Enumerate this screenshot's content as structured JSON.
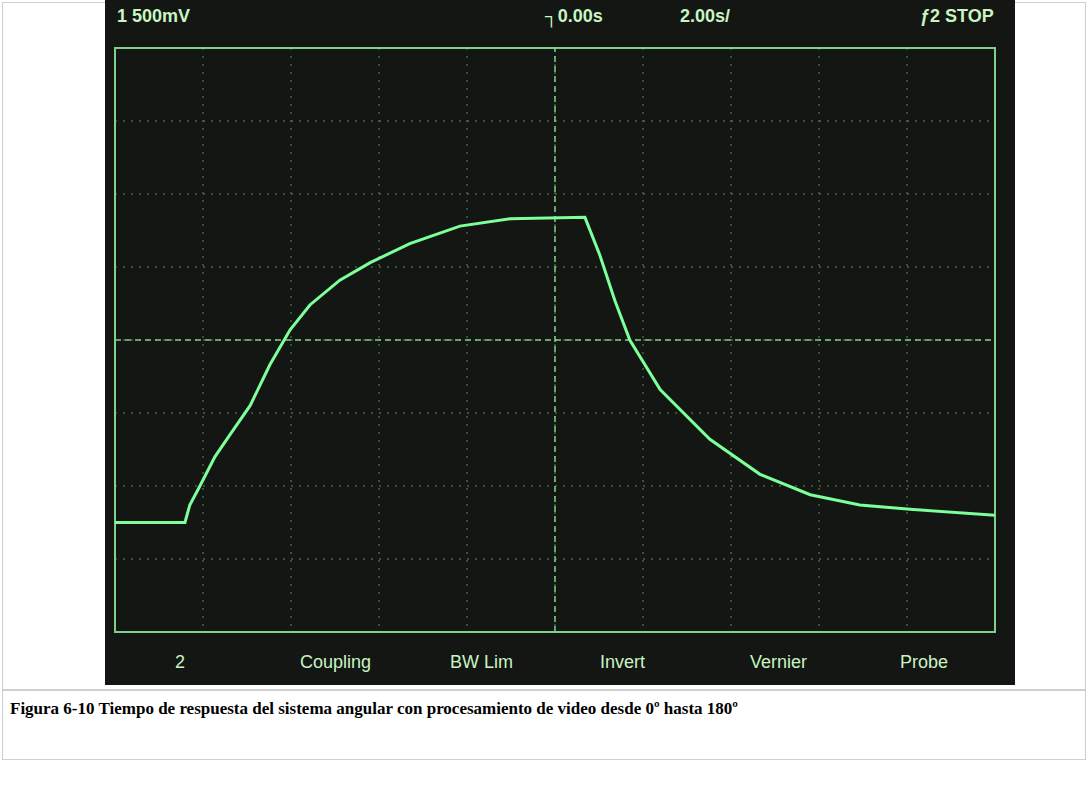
{
  "chart_data": {
    "type": "line",
    "title": "Figura 6-10 Tiempo de respuesta del sistema angular con procesamiento de video desde 0º hasta 180º",
    "annotations": {
      "channel": "1 500mV",
      "trigger_time": "0.00s",
      "time_base": "2.00s/",
      "status": "ƒ2 STOP",
      "softkeys": [
        "2",
        "Coupling",
        "BW Lim",
        "Invert",
        "Vernier",
        "Probe"
      ]
    },
    "x": [
      -10,
      -8.41,
      -8.3,
      -8.07,
      -7.73,
      -7.39,
      -6.93,
      -6.48,
      -6.02,
      -5.57,
      -4.89,
      -4.2,
      -3.3,
      -2.16,
      -1.02,
      0.68,
      1.02,
      1.36,
      1.7,
      2.39,
      3.52,
      4.66,
      5.8,
      6.93,
      8.07,
      10
    ],
    "values": [
      -1250,
      -1250,
      -1130,
      -1000,
      -800,
      -650,
      -450,
      -170,
      70,
      240,
      410,
      530,
      660,
      780,
      830,
      840,
      580,
      270,
      0,
      -340,
      -680,
      -920,
      -1060,
      -1130,
      -1160,
      -1200
    ],
    "color": "#7dff9a",
    "xlim": [
      -10,
      10
    ],
    "xticks": [
      -10,
      -8,
      -6,
      -4,
      -2,
      0,
      2,
      4,
      6,
      8,
      10
    ],
    "ylim": [
      -2000,
      2000
    ],
    "yticks": [
      -2000,
      -1500,
      -1000,
      -500,
      0,
      500,
      1000,
      1500,
      2000
    ],
    "grid": true,
    "tick_labels": false
  }
}
